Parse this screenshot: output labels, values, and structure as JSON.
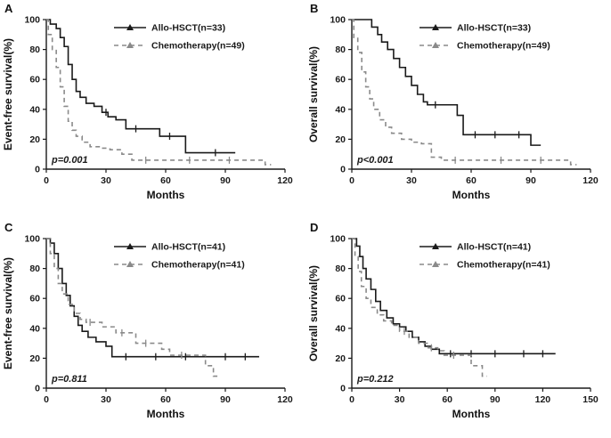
{
  "figure": {
    "background": "#ffffff",
    "axis_color": "#1a1a1a"
  },
  "chart_data": [
    {
      "type": "line",
      "panel_label": "A",
      "ylabel": "Event-free survival(%)",
      "xlabel": "Months",
      "p_label": "p=0.001",
      "xlim": [
        0,
        120
      ],
      "ylim": [
        0,
        100
      ],
      "xticks": [
        0,
        30,
        60,
        90,
        120
      ],
      "yticks": [
        0,
        20,
        40,
        60,
        80,
        100
      ],
      "legend_position": "top-right",
      "series": [
        {
          "name": "Allo-HSCT(n=33)",
          "color": "#1a1a1a",
          "dash": "solid",
          "points": [
            [
              0,
              100
            ],
            [
              2,
              97
            ],
            [
              5,
              94
            ],
            [
              7,
              88
            ],
            [
              9,
              82
            ],
            [
              11,
              70
            ],
            [
              13,
              60
            ],
            [
              15,
              52
            ],
            [
              17,
              48
            ],
            [
              20,
              44
            ],
            [
              24,
              42
            ],
            [
              28,
              38
            ],
            [
              31,
              35
            ],
            [
              35,
              33
            ],
            [
              40,
              27
            ],
            [
              55,
              27
            ],
            [
              57,
              22
            ],
            [
              70,
              11
            ],
            [
              95,
              11
            ]
          ],
          "censors": [
            30,
            45,
            62,
            85
          ]
        },
        {
          "name": "Chemotherapy(n=49)",
          "color": "#8a8a8a",
          "dash": "dashed",
          "points": [
            [
              0,
              100
            ],
            [
              1,
              90
            ],
            [
              3,
              80
            ],
            [
              5,
              68
            ],
            [
              7,
              55
            ],
            [
              9,
              42
            ],
            [
              11,
              32
            ],
            [
              13,
              26
            ],
            [
              15,
              22
            ],
            [
              18,
              18
            ],
            [
              22,
              15
            ],
            [
              27,
              14
            ],
            [
              32,
              13
            ],
            [
              38,
              10
            ],
            [
              43,
              6
            ],
            [
              105,
              6
            ],
            [
              110,
              3
            ],
            [
              113,
              3
            ]
          ],
          "censors": [
            50,
            72,
            92
          ]
        }
      ]
    },
    {
      "type": "line",
      "panel_label": "B",
      "ylabel": "Overall survival(%)",
      "xlabel": "Months",
      "p_label": "p<0.001",
      "xlim": [
        0,
        120
      ],
      "ylim": [
        0,
        100
      ],
      "xticks": [
        0,
        30,
        60,
        90,
        120
      ],
      "yticks": [
        0,
        20,
        40,
        60,
        80,
        100
      ],
      "legend_position": "top-right",
      "series": [
        {
          "name": "Allo-HSCT(n=33)",
          "color": "#1a1a1a",
          "dash": "solid",
          "points": [
            [
              0,
              100
            ],
            [
              8,
              100
            ],
            [
              10,
              95
            ],
            [
              13,
              90
            ],
            [
              15,
              85
            ],
            [
              18,
              80
            ],
            [
              21,
              74
            ],
            [
              24,
              68
            ],
            [
              27,
              62
            ],
            [
              30,
              56
            ],
            [
              33,
              50
            ],
            [
              36,
              45
            ],
            [
              38,
              43
            ],
            [
              50,
              43
            ],
            [
              53,
              36
            ],
            [
              56,
              23
            ],
            [
              88,
              23
            ],
            [
              90,
              16
            ],
            [
              95,
              16
            ]
          ],
          "censors": [
            42,
            62,
            72,
            84
          ]
        },
        {
          "name": "Chemotherapy(n=49)",
          "color": "#8a8a8a",
          "dash": "dashed",
          "points": [
            [
              0,
              100
            ],
            [
              1,
              88
            ],
            [
              3,
              78
            ],
            [
              5,
              65
            ],
            [
              7,
              55
            ],
            [
              9,
              47
            ],
            [
              11,
              40
            ],
            [
              14,
              33
            ],
            [
              17,
              28
            ],
            [
              20,
              24
            ],
            [
              25,
              20
            ],
            [
              30,
              18
            ],
            [
              35,
              17
            ],
            [
              40,
              8
            ],
            [
              45,
              6
            ],
            [
              105,
              6
            ],
            [
              110,
              3
            ],
            [
              113,
              3
            ]
          ],
          "censors": [
            52,
            75,
            95
          ]
        }
      ]
    },
    {
      "type": "line",
      "panel_label": "C",
      "ylabel": "Event-free survival(%)",
      "xlabel": "Months",
      "p_label": "p=0.811",
      "xlim": [
        0,
        120
      ],
      "ylim": [
        0,
        100
      ],
      "xticks": [
        0,
        30,
        60,
        90,
        120
      ],
      "yticks": [
        0,
        20,
        40,
        60,
        80,
        100
      ],
      "legend_position": "top-right",
      "series": [
        {
          "name": "Allo-HSCT(n=41)",
          "color": "#1a1a1a",
          "dash": "solid",
          "points": [
            [
              0,
              100
            ],
            [
              2,
              97
            ],
            [
              4,
              90
            ],
            [
              6,
              80
            ],
            [
              8,
              70
            ],
            [
              10,
              62
            ],
            [
              12,
              55
            ],
            [
              14,
              48
            ],
            [
              16,
              42
            ],
            [
              18,
              38
            ],
            [
              21,
              34
            ],
            [
              25,
              31
            ],
            [
              30,
              28
            ],
            [
              33,
              21
            ],
            [
              107,
              21
            ]
          ],
          "censors": [
            40,
            55,
            70,
            90,
            100
          ]
        },
        {
          "name": "Chemotherapy(n=41)",
          "color": "#8a8a8a",
          "dash": "dashed",
          "points": [
            [
              0,
              100
            ],
            [
              2,
              90
            ],
            [
              4,
              80
            ],
            [
              6,
              70
            ],
            [
              8,
              63
            ],
            [
              11,
              56
            ],
            [
              14,
              50
            ],
            [
              17,
              46
            ],
            [
              20,
              44
            ],
            [
              28,
              41
            ],
            [
              35,
              37
            ],
            [
              42,
              37
            ],
            [
              45,
              30
            ],
            [
              55,
              30
            ],
            [
              58,
              26
            ],
            [
              62,
              22
            ],
            [
              78,
              22
            ],
            [
              80,
              15
            ],
            [
              84,
              8
            ],
            [
              86,
              8
            ]
          ],
          "censors": [
            22,
            38,
            50,
            68
          ]
        }
      ]
    },
    {
      "type": "line",
      "panel_label": "D",
      "ylabel": "Overall survival(%)",
      "xlabel": "Months",
      "p_label": "p=0.212",
      "xlim": [
        0,
        150
      ],
      "ylim": [
        0,
        100
      ],
      "xticks": [
        0,
        30,
        60,
        90,
        120,
        150
      ],
      "yticks": [
        0,
        20,
        40,
        60,
        80,
        100
      ],
      "legend_position": "top-right",
      "series": [
        {
          "name": "Allo-HSCT(n=41)",
          "color": "#1a1a1a",
          "dash": "solid",
          "points": [
            [
              0,
              100
            ],
            [
              3,
              95
            ],
            [
              5,
              88
            ],
            [
              7,
              80
            ],
            [
              9,
              73
            ],
            [
              12,
              66
            ],
            [
              15,
              58
            ],
            [
              18,
              52
            ],
            [
              22,
              47
            ],
            [
              26,
              43
            ],
            [
              30,
              41
            ],
            [
              34,
              38
            ],
            [
              38,
              34
            ],
            [
              42,
              31
            ],
            [
              46,
              28
            ],
            [
              50,
              26
            ],
            [
              55,
              23
            ],
            [
              128,
              23
            ]
          ],
          "censors": [
            62,
            75,
            90,
            108,
            120
          ]
        },
        {
          "name": "Chemotherapy(n=41)",
          "color": "#8a8a8a",
          "dash": "dashed",
          "points": [
            [
              0,
              100
            ],
            [
              2,
              88
            ],
            [
              4,
              78
            ],
            [
              6,
              68
            ],
            [
              9,
              60
            ],
            [
              12,
              54
            ],
            [
              16,
              49
            ],
            [
              20,
              45
            ],
            [
              25,
              42
            ],
            [
              30,
              38
            ],
            [
              36,
              34
            ],
            [
              42,
              30
            ],
            [
              48,
              27
            ],
            [
              54,
              25
            ],
            [
              58,
              22
            ],
            [
              70,
              22
            ],
            [
              75,
              15
            ],
            [
              82,
              8
            ],
            [
              85,
              8
            ]
          ],
          "censors": [
            33,
            50,
            64
          ]
        }
      ]
    }
  ]
}
